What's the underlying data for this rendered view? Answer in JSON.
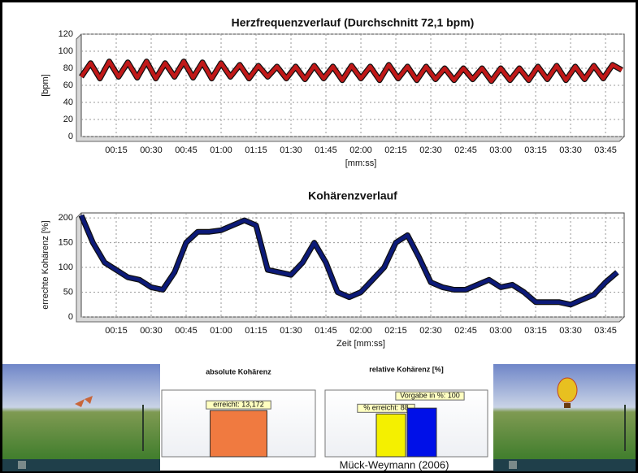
{
  "credit": "Mück-Weymann (2006)",
  "chart_data": [
    {
      "type": "line",
      "title": "Herzfrequenzverlauf (Durchschnitt 72,1 bpm)",
      "y_label": "[bpm]",
      "x_label": "[mm:ss]",
      "xlim": [
        0,
        233
      ],
      "ylim": [
        0,
        120
      ],
      "yticks": [
        0,
        20,
        40,
        60,
        80,
        100,
        120
      ],
      "grid": true,
      "xticks": [
        {
          "value": 15,
          "label": "00:15"
        },
        {
          "value": 30,
          "label": "00:30"
        },
        {
          "value": 45,
          "label": "00:45"
        },
        {
          "value": 60,
          "label": "01:00"
        },
        {
          "value": 75,
          "label": "01:15"
        },
        {
          "value": 90,
          "label": "01:30"
        },
        {
          "value": 105,
          "label": "01:45"
        },
        {
          "value": 120,
          "label": "02:00"
        },
        {
          "value": 135,
          "label": "02:15"
        },
        {
          "value": 150,
          "label": "02:30"
        },
        {
          "value": 165,
          "label": "02:45"
        },
        {
          "value": 180,
          "label": "03:00"
        },
        {
          "value": 195,
          "label": "03:15"
        },
        {
          "value": 210,
          "label": "03:30"
        },
        {
          "value": 225,
          "label": "03:45"
        }
      ],
      "x": [
        0,
        4,
        8,
        12,
        16,
        20,
        24,
        28,
        32,
        36,
        40,
        44,
        48,
        52,
        56,
        60,
        64,
        68,
        72,
        76,
        80,
        84,
        88,
        92,
        96,
        100,
        104,
        108,
        112,
        116,
        120,
        124,
        128,
        132,
        136,
        140,
        144,
        148,
        152,
        156,
        160,
        164,
        168,
        172,
        176,
        180,
        184,
        188,
        192,
        196,
        200,
        204,
        208,
        212,
        216,
        220,
        224,
        228,
        232
      ],
      "series": [
        {
          "color": "#c01818",
          "values": [
            70,
            86,
            68,
            88,
            70,
            87,
            69,
            88,
            68,
            86,
            70,
            88,
            69,
            87,
            68,
            86,
            70,
            84,
            68,
            83,
            70,
            82,
            68,
            82,
            67,
            83,
            68,
            82,
            66,
            83,
            68,
            82,
            66,
            84,
            68,
            82,
            66,
            82,
            67,
            80,
            66,
            80,
            67,
            80,
            65,
            80,
            66,
            80,
            66,
            82,
            67,
            83,
            66,
            82,
            67,
            83,
            68,
            84,
            78
          ]
        }
      ]
    },
    {
      "type": "line",
      "title": "Kohärenzverlauf",
      "y_label": "errechte Kohärenz [%]",
      "x_label": "Zeit [mm:ss]",
      "xlim": [
        0,
        233
      ],
      "ylim": [
        0,
        210
      ],
      "yticks": [
        0,
        50,
        100,
        150,
        200
      ],
      "grid": true,
      "xticks": [
        {
          "value": 15,
          "label": "00:15"
        },
        {
          "value": 30,
          "label": "00:30"
        },
        {
          "value": 45,
          "label": "00:45"
        },
        {
          "value": 60,
          "label": "01:00"
        },
        {
          "value": 75,
          "label": "01:15"
        },
        {
          "value": 90,
          "label": "01:30"
        },
        {
          "value": 105,
          "label": "01:45"
        },
        {
          "value": 120,
          "label": "02:00"
        },
        {
          "value": 135,
          "label": "02:15"
        },
        {
          "value": 150,
          "label": "02:30"
        },
        {
          "value": 165,
          "label": "02:45"
        },
        {
          "value": 180,
          "label": "03:00"
        },
        {
          "value": 195,
          "label": "03:15"
        },
        {
          "value": 210,
          "label": "03:30"
        },
        {
          "value": 225,
          "label": "03:45"
        }
      ],
      "x": [
        0,
        5,
        10,
        15,
        20,
        25,
        30,
        35,
        40,
        45,
        50,
        55,
        60,
        65,
        70,
        75,
        80,
        85,
        90,
        95,
        100,
        105,
        110,
        115,
        120,
        125,
        130,
        135,
        140,
        145,
        150,
        155,
        160,
        165,
        170,
        175,
        180,
        185,
        190,
        195,
        200,
        205,
        210,
        215,
        220,
        225,
        230
      ],
      "series": [
        {
          "color": "#0c1a78",
          "values": [
            205,
            150,
            110,
            95,
            80,
            75,
            60,
            55,
            90,
            150,
            172,
            172,
            175,
            185,
            195,
            185,
            95,
            90,
            85,
            110,
            150,
            110,
            50,
            40,
            50,
            75,
            100,
            150,
            165,
            120,
            70,
            60,
            55,
            55,
            65,
            75,
            60,
            65,
            50,
            30,
            30,
            30,
            25,
            35,
            45,
            70,
            90
          ]
        }
      ]
    },
    {
      "type": "bar",
      "title": "absolute Kohärenz",
      "ylim": [
        0,
        19
      ],
      "values": [
        13.172
      ],
      "value_labels": [
        "erreicht: 13,172"
      ],
      "colors": [
        "#f07a40"
      ]
    },
    {
      "type": "bar",
      "title": "relative Kohärenz [%]",
      "ylim": [
        0,
        137
      ],
      "values": [
        88,
        100
      ],
      "value_labels": [
        "% erreicht: 88",
        "Vorgabe in %: 100"
      ],
      "colors": [
        "#f4f000",
        "#0010e8"
      ]
    }
  ]
}
